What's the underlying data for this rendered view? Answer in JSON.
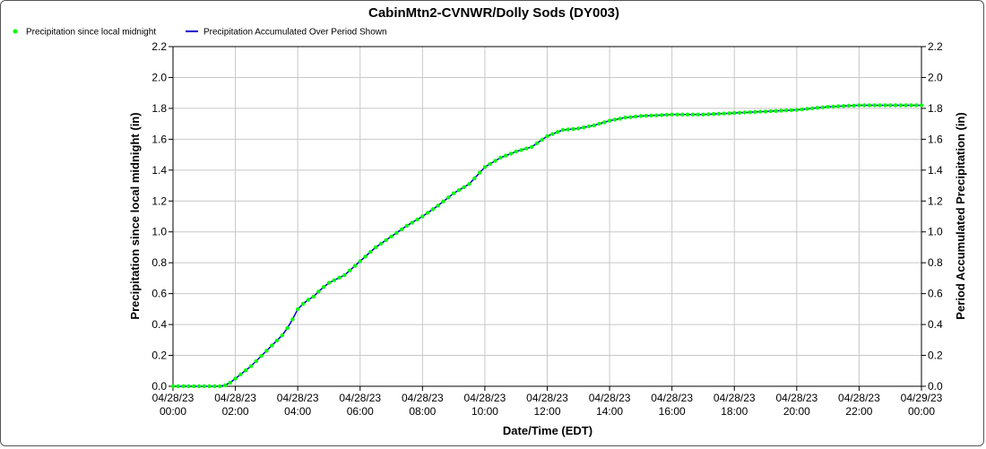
{
  "chart_data": {
    "type": "line",
    "title": "CabinMtn2-CVNWR/Dolly Sods (DY003)",
    "xlabel": "Date/Time (EDT)",
    "ylabel_left": "Precipitation since local midnight (in)",
    "ylabel_right": "Period Accumulated Precipitation (in)",
    "ylim": [
      0,
      2.2
    ],
    "yticks": [
      "0.0",
      "0.2",
      "0.4",
      "0.6",
      "0.8",
      "1.0",
      "1.2",
      "1.4",
      "1.6",
      "1.8",
      "2.0",
      "2.2"
    ],
    "xlim_hours": [
      0,
      24
    ],
    "xticks": [
      {
        "date": "04/28/23",
        "time": "00:00"
      },
      {
        "date": "04/28/23",
        "time": "02:00"
      },
      {
        "date": "04/28/23",
        "time": "04:00"
      },
      {
        "date": "04/28/23",
        "time": "06:00"
      },
      {
        "date": "04/28/23",
        "time": "08:00"
      },
      {
        "date": "04/28/23",
        "time": "10:00"
      },
      {
        "date": "04/28/23",
        "time": "12:00"
      },
      {
        "date": "04/28/23",
        "time": "14:00"
      },
      {
        "date": "04/28/23",
        "time": "16:00"
      },
      {
        "date": "04/28/23",
        "time": "18:00"
      },
      {
        "date": "04/28/23",
        "time": "20:00"
      },
      {
        "date": "04/28/23",
        "time": "22:00"
      },
      {
        "date": "04/29/23",
        "time": "00:00"
      }
    ],
    "legend_placement": "top-left",
    "grid": true,
    "series": [
      {
        "name": "Precipitation since local midnight",
        "style": "points",
        "color": "#00ff00"
      },
      {
        "name": "Precipitation Accumulated Over Period Shown",
        "style": "line",
        "color": "#0000cc"
      }
    ],
    "x_hours": [
      0,
      1.5,
      1.75,
      2.0,
      2.5,
      3.0,
      3.5,
      3.75,
      4.0,
      4.25,
      4.5,
      4.75,
      5.0,
      5.5,
      6.0,
      6.5,
      7.0,
      7.5,
      8.0,
      8.5,
      9.0,
      9.5,
      10.0,
      10.5,
      11.0,
      11.5,
      12.0,
      12.5,
      13.0,
      13.5,
      14.0,
      14.5,
      15.0,
      16.0,
      17.0,
      18.0,
      19.0,
      20.0,
      21.0,
      22.0,
      23.0,
      24.0
    ],
    "values": [
      0.0,
      0.0,
      0.01,
      0.05,
      0.13,
      0.23,
      0.33,
      0.4,
      0.5,
      0.55,
      0.58,
      0.63,
      0.67,
      0.72,
      0.81,
      0.9,
      0.97,
      1.04,
      1.1,
      1.17,
      1.25,
      1.31,
      1.42,
      1.48,
      1.52,
      1.55,
      1.62,
      1.66,
      1.67,
      1.69,
      1.72,
      1.74,
      1.75,
      1.76,
      1.76,
      1.77,
      1.78,
      1.79,
      1.81,
      1.82,
      1.82,
      1.82
    ]
  }
}
